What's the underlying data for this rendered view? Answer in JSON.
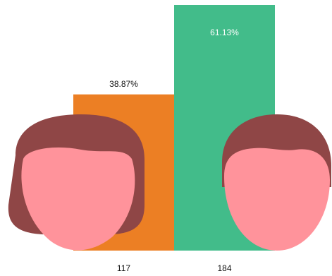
{
  "chart_data": {
    "type": "bar",
    "categories": [
      "117",
      "184"
    ],
    "values": [
      38.87,
      61.13
    ],
    "value_labels": [
      "38.87%",
      "61.13%"
    ],
    "colors": [
      "#ec7f24",
      "#42bc8a"
    ],
    "ylim": [
      0,
      61.13
    ]
  }
}
